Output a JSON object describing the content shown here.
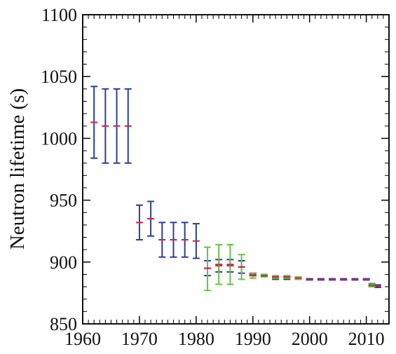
{
  "chart_data": {
    "type": "scatter",
    "xlabel": "",
    "ylabel": "Neutron lifetime (s)",
    "xlim": [
      1960,
      2014
    ],
    "ylim": [
      850,
      1100
    ],
    "x_ticks": [
      1960,
      1970,
      1980,
      1990,
      2000,
      2010
    ],
    "y_ticks": [
      850,
      900,
      950,
      1000,
      1050,
      1100
    ],
    "x_tick_labels": [
      "1960",
      "1970",
      "1980",
      "1990",
      "2000",
      "2010"
    ],
    "y_tick_labels": [
      "850",
      "900",
      "950",
      "1000",
      "1050",
      "1100"
    ],
    "grid": false,
    "colors": {
      "errorbar_blue": "#2b3f96",
      "errorbar_green": "#6cbf4b",
      "center_red": "#cc2244",
      "axis": "#111111"
    },
    "series": [
      {
        "color_key": "errorbar_blue",
        "points": [
          {
            "x": 1962,
            "y": 1013,
            "lo": 984,
            "hi": 1042
          },
          {
            "x": 1964,
            "y": 1010,
            "lo": 980,
            "hi": 1040
          },
          {
            "x": 1966,
            "y": 1010,
            "lo": 980,
            "hi": 1040
          },
          {
            "x": 1968,
            "y": 1010,
            "lo": 980,
            "hi": 1040
          },
          {
            "x": 1970,
            "y": 932,
            "lo": 918,
            "hi": 946
          },
          {
            "x": 1972,
            "y": 935,
            "lo": 921,
            "hi": 949
          },
          {
            "x": 1974,
            "y": 918,
            "lo": 904,
            "hi": 932
          },
          {
            "x": 1976,
            "y": 918,
            "lo": 904,
            "hi": 932
          },
          {
            "x": 1978,
            "y": 918,
            "lo": 904,
            "hi": 932
          },
          {
            "x": 1980,
            "y": 917,
            "lo": 903,
            "hi": 931
          },
          {
            "x": 1982,
            "y": 895,
            "lo": 889,
            "hi": 901
          },
          {
            "x": 1984,
            "y": 897,
            "lo": 892,
            "hi": 902
          },
          {
            "x": 1986,
            "y": 897,
            "lo": 892,
            "hi": 902
          },
          {
            "x": 1988,
            "y": 896,
            "lo": 891,
            "hi": 901
          },
          {
            "x": 1990,
            "y": 890,
            "lo": 889,
            "hi": 891
          },
          {
            "x": 1992,
            "y": 889,
            "lo": 888,
            "hi": 890
          },
          {
            "x": 1994,
            "y": 887,
            "lo": 886,
            "hi": 888
          },
          {
            "x": 1996,
            "y": 887,
            "lo": 886,
            "hi": 888
          },
          {
            "x": 1998,
            "y": 887,
            "lo": 886,
            "hi": 888
          },
          {
            "x": 2000,
            "y": 886,
            "lo": 885.5,
            "hi": 886.5
          },
          {
            "x": 2002,
            "y": 886,
            "lo": 885.5,
            "hi": 886.5
          },
          {
            "x": 2004,
            "y": 886,
            "lo": 885.5,
            "hi": 886.5
          },
          {
            "x": 2006,
            "y": 886,
            "lo": 885.5,
            "hi": 886.5
          },
          {
            "x": 2008,
            "y": 886,
            "lo": 885.5,
            "hi": 886.5
          },
          {
            "x": 2010,
            "y": 886,
            "lo": 885.5,
            "hi": 886.5
          },
          {
            "x": 2011,
            "y": 881.5,
            "lo": 880.5,
            "hi": 882.5
          },
          {
            "x": 2012,
            "y": 880.5,
            "lo": 879.5,
            "hi": 881.5
          }
        ]
      },
      {
        "color_key": "errorbar_green",
        "points": [
          {
            "x": 1982,
            "y": 895,
            "lo": 877,
            "hi": 912
          },
          {
            "x": 1984,
            "y": 898,
            "lo": 882,
            "hi": 914
          },
          {
            "x": 1986,
            "y": 898,
            "lo": 882,
            "hi": 914
          },
          {
            "x": 1988,
            "y": 896,
            "lo": 886,
            "hi": 906
          },
          {
            "x": 1990,
            "y": 889,
            "lo": 887,
            "hi": 891
          },
          {
            "x": 1992,
            "y": 889,
            "lo": 888,
            "hi": 890
          },
          {
            "x": 1994,
            "y": 888,
            "lo": 887,
            "hi": 889
          },
          {
            "x": 1996,
            "y": 888,
            "lo": 887,
            "hi": 889
          },
          {
            "x": 1998,
            "y": 887,
            "lo": 886,
            "hi": 888
          },
          {
            "x": 2011,
            "y": 881,
            "lo": 880,
            "hi": 882
          }
        ]
      }
    ]
  }
}
